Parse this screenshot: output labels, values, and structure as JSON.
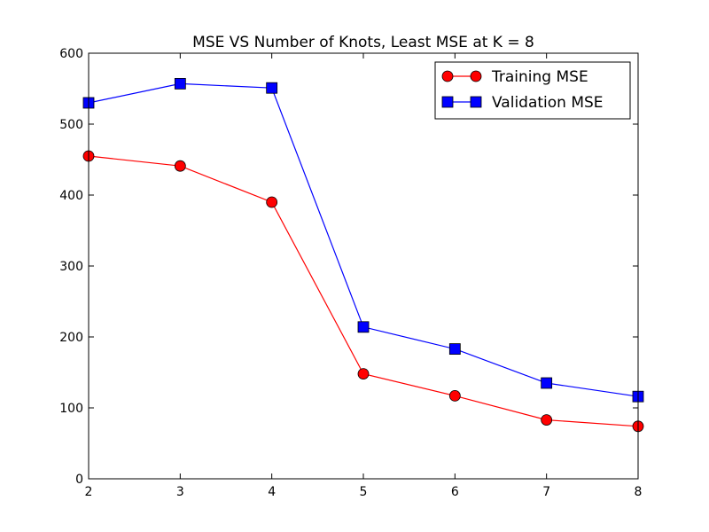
{
  "chart_data": {
    "type": "line",
    "title": "MSE VS Number of Knots, Least MSE at K = 8",
    "xlabel": "",
    "ylabel": "",
    "x": [
      2,
      3,
      4,
      5,
      6,
      7,
      8
    ],
    "xlim": [
      2,
      8
    ],
    "ylim": [
      0,
      600
    ],
    "xticks": [
      "2",
      "3",
      "4",
      "5",
      "6",
      "7",
      "8"
    ],
    "yticks": [
      "0",
      "100",
      "200",
      "300",
      "400",
      "500",
      "600"
    ],
    "grid": false,
    "legend_position": "top-right",
    "series": [
      {
        "name": "Training MSE",
        "values": [
          455,
          441,
          390,
          148,
          117,
          83,
          74
        ],
        "color": "#ff0000",
        "marker": "circle"
      },
      {
        "name": "Validation MSE",
        "values": [
          530,
          557,
          551,
          214,
          183,
          135,
          116
        ],
        "color": "#0000ff",
        "marker": "square"
      }
    ]
  }
}
